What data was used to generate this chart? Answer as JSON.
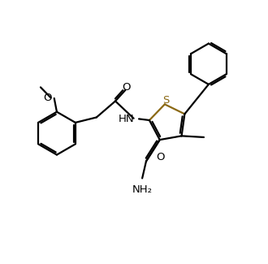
{
  "bg_color": "#ffffff",
  "line_color": "#000000",
  "sulfur_color": "#8B6914",
  "lw": 1.6,
  "figsize": [
    3.3,
    3.25
  ],
  "dpi": 100,
  "xlim": [
    0,
    10
  ],
  "ylim": [
    0,
    10
  ],
  "font_size": 9.5
}
